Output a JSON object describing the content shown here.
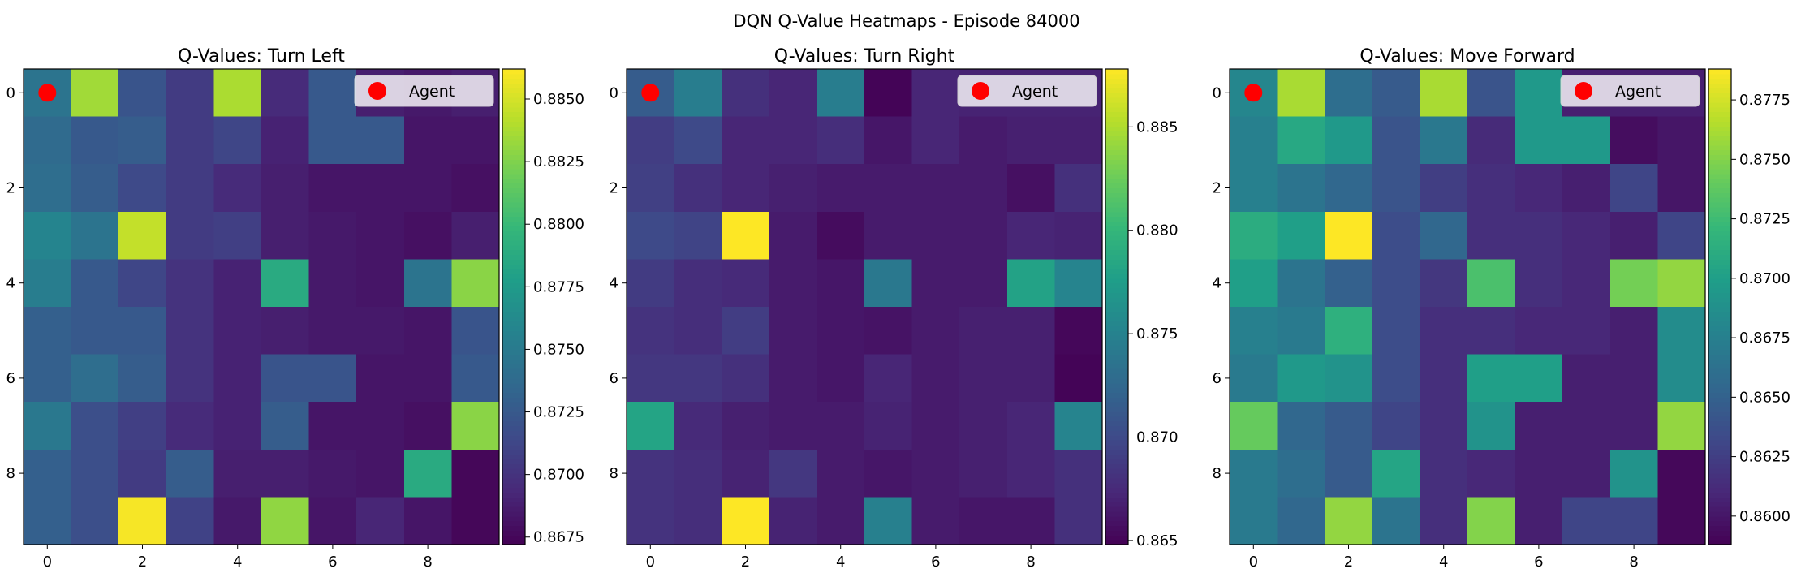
{
  "figure_title": "DQN Q-Value Heatmaps - Episode 84000",
  "colormap": [
    "#440154",
    "#482878",
    "#3e4989",
    "#31688e",
    "#26828e",
    "#1f9e89",
    "#35b779",
    "#6ece58",
    "#b5de2b",
    "#fde725"
  ],
  "agent_color": "#ff0000",
  "chart_data": [
    {
      "type": "heatmap",
      "title": "Q-Values: Turn Left",
      "legend": "Agent",
      "legend_position": "top-right",
      "agent_cell": [
        0,
        0
      ],
      "x_ticks": [
        "0",
        "2",
        "4",
        "6",
        "8"
      ],
      "y_ticks": [
        "0",
        "2",
        "4",
        "6",
        "8"
      ],
      "vmin": 0.8672,
      "vmax": 0.8862,
      "colorbar_ticks": [
        "0.8675",
        "0.8700",
        "0.8725",
        "0.8750",
        "0.8775",
        "0.8800",
        "0.8825",
        "0.8850"
      ],
      "values": [
        [
          0.8745,
          0.8835,
          0.8722,
          0.8705,
          0.8838,
          0.8695,
          0.8725,
          0.8688,
          0.8685,
          0.8688
        ],
        [
          0.8738,
          0.8725,
          0.8728,
          0.8705,
          0.8712,
          0.869,
          0.8725,
          0.8725,
          0.8683,
          0.8683
        ],
        [
          0.874,
          0.8728,
          0.8715,
          0.8705,
          0.8695,
          0.8688,
          0.8683,
          0.8683,
          0.8683,
          0.868
        ],
        [
          0.8758,
          0.8745,
          0.8845,
          0.8705,
          0.8708,
          0.8688,
          0.8685,
          0.8683,
          0.868,
          0.8688
        ],
        [
          0.8752,
          0.8725,
          0.8712,
          0.87,
          0.869,
          0.8788,
          0.8685,
          0.8683,
          0.8745,
          0.8828
        ],
        [
          0.873,
          0.8725,
          0.8725,
          0.87,
          0.869,
          0.8688,
          0.8685,
          0.8685,
          0.8683,
          0.8722
        ],
        [
          0.873,
          0.874,
          0.8728,
          0.87,
          0.869,
          0.8722,
          0.8722,
          0.8683,
          0.8683,
          0.8725
        ],
        [
          0.8748,
          0.8718,
          0.8708,
          0.8695,
          0.869,
          0.8728,
          0.8683,
          0.8683,
          0.868,
          0.8828
        ],
        [
          0.873,
          0.8718,
          0.8705,
          0.8728,
          0.8688,
          0.8688,
          0.8685,
          0.8683,
          0.8788,
          0.8675
        ],
        [
          0.873,
          0.8718,
          0.886,
          0.871,
          0.8685,
          0.883,
          0.8683,
          0.8692,
          0.8683,
          0.8675
        ]
      ]
    },
    {
      "type": "heatmap",
      "title": "Q-Values: Turn Right",
      "legend": "Agent",
      "legend_position": "top-right",
      "agent_cell": [
        0,
        0
      ],
      "x_ticks": [
        "0",
        "2",
        "4",
        "6",
        "8"
      ],
      "y_ticks": [
        "0",
        "2",
        "4",
        "6",
        "8"
      ],
      "vmin": 0.8648,
      "vmax": 0.8878,
      "colorbar_ticks": [
        "0.865",
        "0.870",
        "0.875",
        "0.880",
        "0.885"
      ],
      "values": [
        [
          0.8715,
          0.8745,
          0.868,
          0.8672,
          0.8745,
          0.865,
          0.8672,
          0.867,
          0.867,
          0.867
        ],
        [
          0.869,
          0.87,
          0.8672,
          0.8672,
          0.8678,
          0.8662,
          0.8672,
          0.8665,
          0.8668,
          0.8668
        ],
        [
          0.8692,
          0.868,
          0.8672,
          0.8668,
          0.8665,
          0.8665,
          0.8665,
          0.8665,
          0.8658,
          0.868
        ],
        [
          0.87,
          0.8695,
          0.8878,
          0.8665,
          0.8655,
          0.8665,
          0.8665,
          0.8665,
          0.8672,
          0.867
        ],
        [
          0.8688,
          0.8678,
          0.8675,
          0.8665,
          0.8662,
          0.874,
          0.8665,
          0.8665,
          0.878,
          0.8752
        ],
        [
          0.8682,
          0.8678,
          0.869,
          0.8665,
          0.8662,
          0.866,
          0.8665,
          0.8668,
          0.8668,
          0.8652
        ],
        [
          0.8685,
          0.8685,
          0.868,
          0.8665,
          0.8662,
          0.8672,
          0.8665,
          0.8668,
          0.8668,
          0.865
        ],
        [
          0.8782,
          0.8675,
          0.8668,
          0.8665,
          0.8665,
          0.867,
          0.8665,
          0.8668,
          0.8672,
          0.8752
        ],
        [
          0.8682,
          0.8678,
          0.867,
          0.8685,
          0.8665,
          0.8662,
          0.8665,
          0.8668,
          0.8672,
          0.868
        ],
        [
          0.8682,
          0.8678,
          0.8878,
          0.867,
          0.8665,
          0.8748,
          0.8665,
          0.8662,
          0.8662,
          0.868
        ]
      ]
    },
    {
      "type": "heatmap",
      "title": "Q-Values: Move Forward",
      "legend": "Agent",
      "legend_position": "top-right",
      "agent_cell": [
        0,
        0
      ],
      "x_ticks": [
        "0",
        "2",
        "4",
        "6",
        "8"
      ],
      "y_ticks": [
        "0",
        "2",
        "4",
        "6",
        "8"
      ],
      "vmin": 0.8588,
      "vmax": 0.8788,
      "colorbar_ticks": [
        "0.8600",
        "0.8625",
        "0.8650",
        "0.8675",
        "0.8700",
        "0.8725",
        "0.8750",
        "0.8775"
      ],
      "values": [
        [
          0.868,
          0.8762,
          0.866,
          0.8645,
          0.8762,
          0.864,
          0.8695,
          0.8605,
          0.8605,
          0.8605
        ],
        [
          0.8675,
          0.8708,
          0.8695,
          0.864,
          0.8668,
          0.8612,
          0.8695,
          0.8695,
          0.8595,
          0.86
        ],
        [
          0.8675,
          0.8665,
          0.8655,
          0.864,
          0.8625,
          0.8615,
          0.861,
          0.8605,
          0.863,
          0.86
        ],
        [
          0.8712,
          0.87,
          0.8788,
          0.8635,
          0.8655,
          0.8615,
          0.8615,
          0.861,
          0.8605,
          0.863
        ],
        [
          0.87,
          0.8665,
          0.865,
          0.8635,
          0.862,
          0.873,
          0.8615,
          0.861,
          0.8745,
          0.8755
        ],
        [
          0.8675,
          0.867,
          0.8715,
          0.8635,
          0.8615,
          0.8615,
          0.861,
          0.861,
          0.8605,
          0.8685
        ],
        [
          0.867,
          0.8695,
          0.869,
          0.8635,
          0.8615,
          0.87,
          0.87,
          0.8605,
          0.8605,
          0.8685
        ],
        [
          0.874,
          0.8655,
          0.8645,
          0.863,
          0.8615,
          0.869,
          0.8605,
          0.8605,
          0.8605,
          0.8755
        ],
        [
          0.867,
          0.866,
          0.8645,
          0.8705,
          0.8615,
          0.861,
          0.8605,
          0.8605,
          0.869,
          0.8592
        ],
        [
          0.867,
          0.8655,
          0.8755,
          0.8665,
          0.8615,
          0.875,
          0.8605,
          0.863,
          0.863,
          0.8592
        ]
      ]
    }
  ]
}
